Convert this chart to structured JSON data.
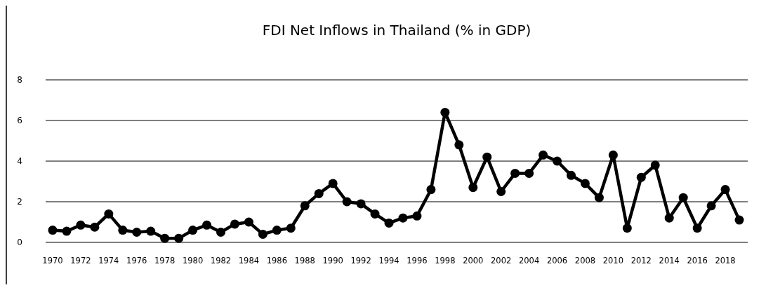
{
  "chart_data": {
    "type": "line",
    "title": "FDI Net Inflows in Thailand (% in GDP)",
    "x": [
      1970,
      1971,
      1972,
      1973,
      1974,
      1975,
      1976,
      1977,
      1978,
      1979,
      1980,
      1981,
      1982,
      1983,
      1984,
      1985,
      1986,
      1987,
      1988,
      1989,
      1990,
      1991,
      1992,
      1993,
      1994,
      1995,
      1996,
      1997,
      1998,
      1999,
      2000,
      2001,
      2002,
      2003,
      2004,
      2005,
      2006,
      2007,
      2008,
      2009,
      2010,
      2011,
      2012,
      2013,
      2014,
      2015,
      2016,
      2017,
      2018,
      2019
    ],
    "series": [
      {
        "color": "#000000",
        "values": [
          0.6,
          0.55,
          0.85,
          0.75,
          1.4,
          0.6,
          0.5,
          0.55,
          0.2,
          0.2,
          0.6,
          0.85,
          0.5,
          0.9,
          1.0,
          0.4,
          0.6,
          0.7,
          1.8,
          2.4,
          2.9,
          2.0,
          1.9,
          1.4,
          0.95,
          1.2,
          1.3,
          2.6,
          6.4,
          4.8,
          2.7,
          4.2,
          2.5,
          3.4,
          3.4,
          4.3,
          4.0,
          3.3,
          2.9,
          2.2,
          4.3,
          0.7,
          3.2,
          3.8,
          1.2,
          2.2,
          0.7,
          1.8,
          2.6,
          1.1
        ]
      }
    ],
    "xlim": [
      1969.5,
      2019.6
    ],
    "xticks": [
      1970,
      1972,
      1974,
      1976,
      1978,
      1980,
      1982,
      1984,
      1986,
      1988,
      1990,
      1992,
      1994,
      1996,
      1998,
      2000,
      2002,
      2004,
      2006,
      2008,
      2010,
      2012,
      2014,
      2016,
      2018
    ],
    "ylim": [
      0,
      8
    ],
    "yticks": [
      0,
      2,
      4,
      6,
      8
    ],
    "grid": "y",
    "marker": "circle",
    "line_style": "solid"
  }
}
